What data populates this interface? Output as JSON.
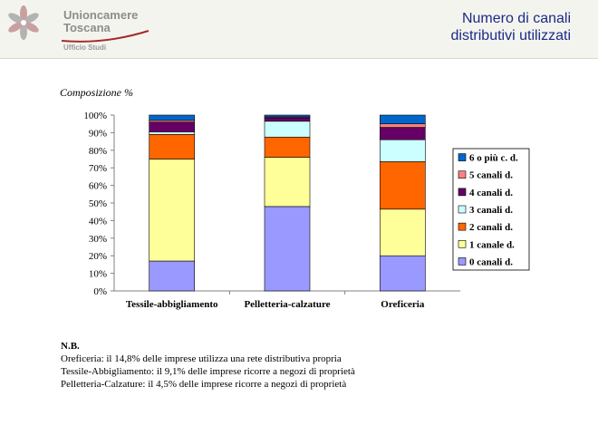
{
  "header": {
    "org_line1": "Unioncamere",
    "org_line2": "Toscana",
    "org_dept": "Ufficio Studi",
    "title_line1": "Numero di canali",
    "title_line2": "distributivi utilizzati"
  },
  "chart_data": {
    "type": "bar",
    "stacked": true,
    "title": "Composizione %",
    "categories": [
      "Tessile-abbigliamento",
      "Pelletteria-calzature",
      "Oreficeria"
    ],
    "ylim": [
      0,
      100
    ],
    "yticks": [
      "0%",
      "10%",
      "20%",
      "30%",
      "40%",
      "50%",
      "60%",
      "70%",
      "80%",
      "90%",
      "100%"
    ],
    "legend_position": "right",
    "series": [
      {
        "name": "0 canali d.",
        "color": "#9999ff",
        "values": [
          17,
          48,
          20
        ]
      },
      {
        "name": "1 canale d.",
        "color": "#ffff99",
        "values": [
          58,
          28,
          26.5
        ]
      },
      {
        "name": "2 canali d.",
        "color": "#ff6600",
        "values": [
          14,
          11.5,
          27
        ]
      },
      {
        "name": "3 canali d.",
        "color": "#ccffff",
        "values": [
          1.5,
          9,
          12.5
        ]
      },
      {
        "name": "4 canali d.",
        "color": "#660066",
        "values": [
          5.5,
          2,
          7
        ]
      },
      {
        "name": "5 canali d.",
        "color": "#ff8080",
        "values": [
          1,
          0.5,
          2
        ]
      },
      {
        "name": "6 o più c. d.",
        "color": "#0066cc",
        "values": [
          3,
          1,
          5
        ]
      }
    ]
  },
  "note": {
    "heading": "N.B.",
    "lines": [
      "Oreficeria: il 14,8% delle imprese utilizza una rete distributiva propria",
      "Tessile-Abbigliamento: il 9,1% delle imprese ricorre a negozi di proprietà",
      "Pelletteria-Calzature: il 4,5% delle imprese ricorre a negozi di proprietà"
    ]
  }
}
